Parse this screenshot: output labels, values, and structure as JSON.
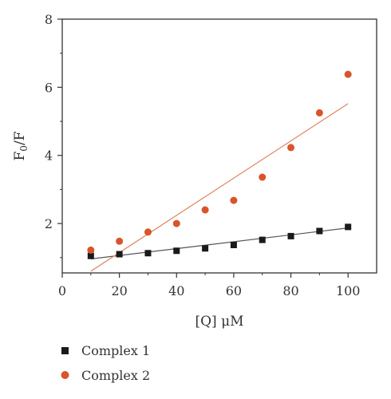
{
  "chart_data": {
    "type": "scatter",
    "xlabel": "[Q] μM",
    "ylabel_main": "F",
    "ylabel_sub": "0",
    "ylabel_tail": "/F",
    "xlim": [
      0,
      110
    ],
    "ylim": [
      0.55,
      8
    ],
    "xticks": [
      0,
      20,
      40,
      60,
      80,
      100
    ],
    "yticks": [
      2,
      4,
      6,
      8
    ],
    "grid": false,
    "legend_position": "bottom-left",
    "series": [
      {
        "name": "Complex 1",
        "marker": "square",
        "color": "#1a1a1a",
        "x": [
          10,
          20,
          30,
          40,
          50,
          60,
          70,
          80,
          90,
          100
        ],
        "y": [
          1.05,
          1.1,
          1.13,
          1.2,
          1.27,
          1.37,
          1.52,
          1.63,
          1.78,
          1.9
        ],
        "fit": {
          "x": [
            10,
            100
          ],
          "y": [
            0.96,
            1.87
          ],
          "color": "#555555"
        }
      },
      {
        "name": "Complex 2",
        "marker": "circle",
        "color": "#d9542b",
        "x": [
          10,
          20,
          30,
          40,
          50,
          60,
          70,
          80,
          90,
          100
        ],
        "y": [
          1.22,
          1.48,
          1.75,
          2.0,
          2.4,
          2.68,
          3.36,
          4.23,
          5.25,
          6.38
        ],
        "fit": {
          "x": [
            10,
            100
          ],
          "y": [
            0.6,
            5.52
          ],
          "color": "#e0825f"
        }
      }
    ]
  }
}
